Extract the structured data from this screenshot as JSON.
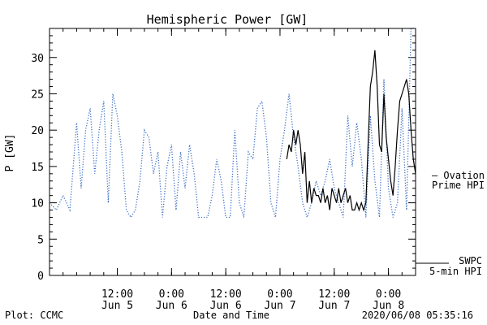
{
  "chart_data": {
    "type": "line",
    "title": "Hemispheric Power [GW]",
    "xlabel": "Date and Time",
    "ylabel": "P [GW]",
    "ylim": [
      0,
      34
    ],
    "yticks": [
      0,
      5,
      10,
      15,
      20,
      25,
      30
    ],
    "xlim": [
      "2020-06-04 21:00",
      "2020-06-08 06:00"
    ],
    "xticks": [
      {
        "at": "2020-06-05 12:00",
        "time": "12:00",
        "day": "Jun 5"
      },
      {
        "at": "2020-06-06 00:00",
        "time": "0:00",
        "day": "Jun 6"
      },
      {
        "at": "2020-06-06 12:00",
        "time": "12:00",
        "day": "Jun 6"
      },
      {
        "at": "2020-06-07 00:00",
        "time": "0:00",
        "day": "Jun 7"
      },
      {
        "at": "2020-06-07 12:00",
        "time": "12:00",
        "day": "Jun 7"
      },
      {
        "at": "2020-06-08 00:00",
        "time": "0:00",
        "day": "Jun 8"
      }
    ],
    "series": [
      {
        "name": "Ovation Prime HPI",
        "label_lines": [
          "— Ovation",
          "Prime HPI"
        ],
        "color": "#3d6fc4",
        "style": "dotted",
        "points": [
          [
            "2020-06-04 21:00",
            10
          ],
          [
            "2020-06-04 22:30",
            9
          ],
          [
            "2020-06-05 00:00",
            11
          ],
          [
            "2020-06-05 01:30",
            9
          ],
          [
            "2020-06-05 03:00",
            21
          ],
          [
            "2020-06-05 04:00",
            12
          ],
          [
            "2020-06-05 05:00",
            20
          ],
          [
            "2020-06-05 06:00",
            23
          ],
          [
            "2020-06-05 07:00",
            14
          ],
          [
            "2020-06-05 08:00",
            20
          ],
          [
            "2020-06-05 09:00",
            24
          ],
          [
            "2020-06-05 10:00",
            10
          ],
          [
            "2020-06-05 11:00",
            25
          ],
          [
            "2020-06-05 12:00",
            22
          ],
          [
            "2020-06-05 13:00",
            17
          ],
          [
            "2020-06-05 14:00",
            9
          ],
          [
            "2020-06-05 15:00",
            8
          ],
          [
            "2020-06-05 16:00",
            9
          ],
          [
            "2020-06-05 17:00",
            13
          ],
          [
            "2020-06-05 18:00",
            20
          ],
          [
            "2020-06-05 19:00",
            19
          ],
          [
            "2020-06-05 20:00",
            14
          ],
          [
            "2020-06-05 21:00",
            17
          ],
          [
            "2020-06-05 22:00",
            8
          ],
          [
            "2020-06-05 23:00",
            15
          ],
          [
            "2020-06-06 00:00",
            18
          ],
          [
            "2020-06-06 01:00",
            9
          ],
          [
            "2020-06-06 02:00",
            17
          ],
          [
            "2020-06-06 03:00",
            12
          ],
          [
            "2020-06-06 04:00",
            18
          ],
          [
            "2020-06-06 05:00",
            14
          ],
          [
            "2020-06-06 06:00",
            8
          ],
          [
            "2020-06-06 07:00",
            8
          ],
          [
            "2020-06-06 08:00",
            8
          ],
          [
            "2020-06-06 09:00",
            11
          ],
          [
            "2020-06-06 10:00",
            16
          ],
          [
            "2020-06-06 11:00",
            13
          ],
          [
            "2020-06-06 12:00",
            8
          ],
          [
            "2020-06-06 13:00",
            8
          ],
          [
            "2020-06-06 14:00",
            20
          ],
          [
            "2020-06-06 15:00",
            10
          ],
          [
            "2020-06-06 16:00",
            8
          ],
          [
            "2020-06-06 17:00",
            17
          ],
          [
            "2020-06-06 18:00",
            16
          ],
          [
            "2020-06-06 19:00",
            23
          ],
          [
            "2020-06-06 20:00",
            24
          ],
          [
            "2020-06-06 21:00",
            19
          ],
          [
            "2020-06-06 22:00",
            10
          ],
          [
            "2020-06-06 23:00",
            8
          ],
          [
            "2020-06-07 00:00",
            16
          ],
          [
            "2020-06-07 01:00",
            20
          ],
          [
            "2020-06-07 02:00",
            25
          ],
          [
            "2020-06-07 03:00",
            19
          ],
          [
            "2020-06-07 04:00",
            15
          ],
          [
            "2020-06-07 05:00",
            10
          ],
          [
            "2020-06-07 06:00",
            8
          ],
          [
            "2020-06-07 07:00",
            10
          ],
          [
            "2020-06-07 08:00",
            13
          ],
          [
            "2020-06-07 09:00",
            11
          ],
          [
            "2020-06-07 10:00",
            13
          ],
          [
            "2020-06-07 11:00",
            16
          ],
          [
            "2020-06-07 12:00",
            12
          ],
          [
            "2020-06-07 13:00",
            10
          ],
          [
            "2020-06-07 14:00",
            8
          ],
          [
            "2020-06-07 15:00",
            22
          ],
          [
            "2020-06-07 16:00",
            15
          ],
          [
            "2020-06-07 17:00",
            21
          ],
          [
            "2020-06-07 18:00",
            16
          ],
          [
            "2020-06-07 19:00",
            8
          ],
          [
            "2020-06-07 20:00",
            22
          ],
          [
            "2020-06-07 21:00",
            13
          ],
          [
            "2020-06-07 22:00",
            8
          ],
          [
            "2020-06-07 23:00",
            27
          ],
          [
            "2020-06-08 00:00",
            12
          ],
          [
            "2020-06-08 01:00",
            8
          ],
          [
            "2020-06-08 02:00",
            10
          ],
          [
            "2020-06-08 03:00",
            23
          ],
          [
            "2020-06-08 04:00",
            9
          ],
          [
            "2020-06-08 05:00",
            34
          ],
          [
            "2020-06-08 06:00",
            34
          ]
        ]
      },
      {
        "name": "SWPC 5-min HPI",
        "label_lines": [
          "SWPC",
          "5-min HPI"
        ],
        "color": "#000000",
        "style": "solid",
        "points": [
          [
            "2020-06-07 01:30",
            16
          ],
          [
            "2020-06-07 02:00",
            18
          ],
          [
            "2020-06-07 02:30",
            17
          ],
          [
            "2020-06-07 03:00",
            20
          ],
          [
            "2020-06-07 03:30",
            18
          ],
          [
            "2020-06-07 04:00",
            20
          ],
          [
            "2020-06-07 04:30",
            18
          ],
          [
            "2020-06-07 05:00",
            14
          ],
          [
            "2020-06-07 05:30",
            17
          ],
          [
            "2020-06-07 06:00",
            10
          ],
          [
            "2020-06-07 06:30",
            13
          ],
          [
            "2020-06-07 07:00",
            10
          ],
          [
            "2020-06-07 07:30",
            12
          ],
          [
            "2020-06-07 08:00",
            11
          ],
          [
            "2020-06-07 08:30",
            11
          ],
          [
            "2020-06-07 09:00",
            10
          ],
          [
            "2020-06-07 09:30",
            12
          ],
          [
            "2020-06-07 10:00",
            10
          ],
          [
            "2020-06-07 10:30",
            11
          ],
          [
            "2020-06-07 11:00",
            9
          ],
          [
            "2020-06-07 11:30",
            12
          ],
          [
            "2020-06-07 12:00",
            11
          ],
          [
            "2020-06-07 12:30",
            10
          ],
          [
            "2020-06-07 13:00",
            12
          ],
          [
            "2020-06-07 13:30",
            10
          ],
          [
            "2020-06-07 14:00",
            11
          ],
          [
            "2020-06-07 14:30",
            12
          ],
          [
            "2020-06-07 15:00",
            10
          ],
          [
            "2020-06-07 15:30",
            11
          ],
          [
            "2020-06-07 16:00",
            9
          ],
          [
            "2020-06-07 16:30",
            9
          ],
          [
            "2020-06-07 17:00",
            10
          ],
          [
            "2020-06-07 17:30",
            9
          ],
          [
            "2020-06-07 18:00",
            10
          ],
          [
            "2020-06-07 18:30",
            9
          ],
          [
            "2020-06-07 19:00",
            10
          ],
          [
            "2020-06-07 19:30",
            18
          ],
          [
            "2020-06-07 20:00",
            26
          ],
          [
            "2020-06-07 20:30",
            28
          ],
          [
            "2020-06-07 21:00",
            31
          ],
          [
            "2020-06-07 21:30",
            26
          ],
          [
            "2020-06-07 22:00",
            18
          ],
          [
            "2020-06-07 22:30",
            17
          ],
          [
            "2020-06-07 23:00",
            25
          ],
          [
            "2020-06-07 23:30",
            19
          ],
          [
            "2020-06-08 00:00",
            16
          ],
          [
            "2020-06-08 00:30",
            13
          ],
          [
            "2020-06-08 01:00",
            11
          ],
          [
            "2020-06-08 01:30",
            15
          ],
          [
            "2020-06-08 02:00",
            20
          ],
          [
            "2020-06-08 02:30",
            24
          ],
          [
            "2020-06-08 03:00",
            25
          ],
          [
            "2020-06-08 03:30",
            26
          ],
          [
            "2020-06-08 04:00",
            27
          ],
          [
            "2020-06-08 04:30",
            25
          ],
          [
            "2020-06-08 05:00",
            20
          ],
          [
            "2020-06-08 05:30",
            16
          ],
          [
            "2020-06-08 06:00",
            14
          ]
        ]
      }
    ],
    "grid": false,
    "legend": "right"
  },
  "footer": {
    "credit": "Plot: CCMC",
    "timestamp": "2020/06/08 05:35:16"
  }
}
